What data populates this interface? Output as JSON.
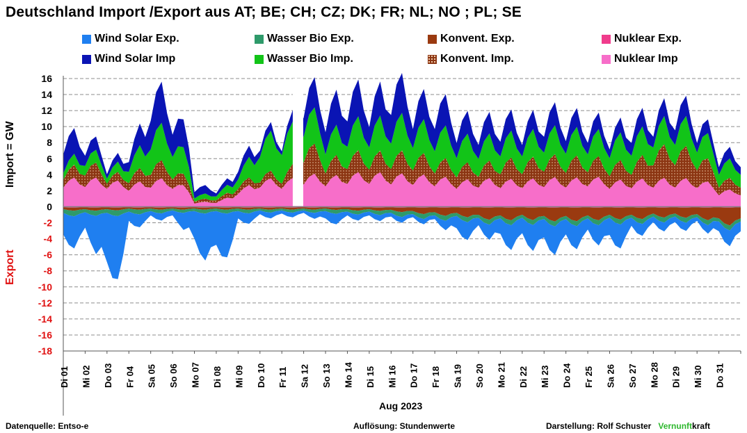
{
  "title": "Deutschland  Import /Export  aus AT;  BE;  CH;  CZ;  DK;  FR;  NL;  NO ;  PL;  SE",
  "legend": [
    {
      "label": "Wind Solar Exp.",
      "color": "#1f7ff0"
    },
    {
      "label": "Wasser Bio Exp.",
      "color": "#2e9a6a"
    },
    {
      "label": "Konvent. Exp.",
      "color": "#9a3a10"
    },
    {
      "label": "Nuklear Exp.",
      "color": "#f03c8c"
    },
    {
      "label": "Wind Solar Imp",
      "color": "#0a14b4"
    },
    {
      "label": "Wasser Bio Imp.",
      "color": "#12c418"
    },
    {
      "label": "Konvent. Imp.",
      "color": "#8b3512"
    },
    {
      "label": "Nuklear Imp",
      "color": "#f76ec9"
    }
  ],
  "ylabel_import": "Import    = GW",
  "ylabel_export": "Export",
  "xlabel": "Aug 2023",
  "footer": {
    "source": "Datenquelle: Entso-e",
    "resolution": "Auflösung: Stundenwerte",
    "author": "Darstellung:  Rolf Schuster",
    "brand_a": "Vernunft",
    "brand_b": "kraft",
    "brand_color": "#2eb82e"
  },
  "chart_data": {
    "type": "area",
    "ylim": [
      -18,
      16
    ],
    "yticks": [
      16,
      14,
      12,
      10,
      8,
      6,
      4,
      2,
      0,
      -2,
      -4,
      -6,
      -8,
      -10,
      -12,
      -14,
      -16,
      -18
    ],
    "grid": true,
    "legend_position": "top",
    "categories": [
      "Di 01",
      "Mi 02",
      "Do 03",
      "Fr 04",
      "Sa 05",
      "So 06",
      "Mo 07",
      "Di 08",
      "Mi 09",
      "Do 10",
      "Fr 11",
      "Sa 12",
      "So 13",
      "Mo 14",
      "Di 15",
      "Mi 16",
      "Do 17",
      "Fr 18",
      "Sa 19",
      "So 20",
      "Mo 21",
      "Di 22",
      "Mi 23",
      "Do 24",
      "Fr 25",
      "Sa 26",
      "So 27",
      "Mo 28",
      "Di 29",
      "Mi 30",
      "Do 31"
    ],
    "series_import": [
      {
        "name": "Nuklear Imp",
        "values": [
          3.0,
          3.1,
          2.8,
          2.5,
          3.0,
          2.8,
          0.5,
          0.6,
          2.0,
          3.0,
          2.8,
          3.5,
          3.2,
          3.6,
          3.6,
          3.5,
          3.4,
          3.2,
          2.8,
          3.0,
          2.9,
          2.9,
          3.1,
          3.0,
          3.2,
          2.8,
          2.9,
          3.0,
          3.0,
          2.9,
          1.8
        ]
      },
      {
        "name": "Konvent. Imp.",
        "values": [
          1.2,
          1.8,
          0.8,
          1.2,
          2.0,
          1.5,
          0.3,
          0.4,
          0.8,
          0.8,
          0.8,
          3.5,
          2.0,
          2.3,
          2.2,
          2.4,
          2.3,
          2.0,
          1.8,
          1.7,
          2.2,
          2.2,
          2.4,
          2.3,
          2.2,
          2.0,
          2.1,
          3.5,
          3.5,
          2.8,
          1.2
        ]
      },
      {
        "name": "Wasser Bio Imp.",
        "values": [
          1.0,
          1.5,
          0.8,
          1.8,
          4.0,
          3.5,
          0.5,
          0.6,
          1.5,
          4.0,
          4.5,
          4.0,
          3.0,
          3.5,
          3.5,
          4.0,
          3.5,
          3.5,
          3.0,
          2.8,
          2.8,
          2.8,
          3.0,
          3.0,
          2.8,
          2.8,
          3.0,
          2.8,
          3.2,
          2.8,
          2.0
        ]
      },
      {
        "name": "Wind Solar Imp",
        "values": [
          3.0,
          1.6,
          0.7,
          1.5,
          4.5,
          3.5,
          1.0,
          0.5,
          1.2,
          1.0,
          0.6,
          3.0,
          3.5,
          4.0,
          3.2,
          4.5,
          3.0,
          3.5,
          2.4,
          2.2,
          2.3,
          1.8,
          2.5,
          2.0,
          1.8,
          1.4,
          2.0,
          1.7,
          2.3,
          1.5,
          1.2
        ]
      }
    ],
    "series_export": [
      {
        "name": "Nuklear Exp.",
        "values": [
          -0.1,
          -0.1,
          -0.1,
          -0.1,
          -0.1,
          -0.1,
          -0.1,
          -0.1,
          -0.1,
          -0.1,
          -0.1,
          -0.1,
          -0.1,
          -0.1,
          -0.1,
          -0.1,
          -0.1,
          -0.1,
          -0.1,
          -0.1,
          -0.1,
          -0.1,
          -0.1,
          -0.1,
          -0.1,
          -0.1,
          -0.1,
          -0.1,
          -0.1,
          -0.1,
          -0.1
        ]
      },
      {
        "name": "Konvent. Exp.",
        "values": [
          -0.3,
          -0.3,
          -0.3,
          -0.2,
          -0.2,
          -0.2,
          -0.2,
          -0.2,
          -0.2,
          -0.2,
          -0.2,
          -0.2,
          -0.2,
          -0.3,
          -0.3,
          -0.4,
          -0.6,
          -0.8,
          -0.9,
          -1.2,
          -1.3,
          -1.2,
          -1.4,
          -1.4,
          -1.3,
          -1.2,
          -1.2,
          -1.0,
          -1.0,
          -1.1,
          -1.8
        ]
      },
      {
        "name": "Wasser Bio Exp.",
        "values": [
          -0.6,
          -0.5,
          -0.6,
          -0.5,
          -0.4,
          -0.3,
          -0.4,
          -0.4,
          -0.4,
          -0.3,
          -0.3,
          -0.3,
          -0.4,
          -0.4,
          -0.4,
          -0.5,
          -0.5,
          -0.5,
          -0.5,
          -0.5,
          -0.5,
          -0.5,
          -0.5,
          -0.5,
          -0.5,
          -0.5,
          -0.5,
          -0.5,
          -0.5,
          -0.5,
          -0.5
        ]
      },
      {
        "name": "Wind Solar Exp.",
        "values": [
          -3.5,
          -2.5,
          -8.0,
          -1.5,
          -0.7,
          -0.8,
          -4.5,
          -5.5,
          -1.2,
          -0.6,
          -0.5,
          -0.4,
          -1.2,
          -0.6,
          -0.6,
          -0.6,
          -0.5,
          -0.6,
          -2.0,
          -1.2,
          -2.5,
          -2.5,
          -3.0,
          -2.5,
          -1.8,
          -2.8,
          -1.3,
          -0.9,
          -0.9,
          -0.6,
          -1.6
        ]
      }
    ]
  }
}
